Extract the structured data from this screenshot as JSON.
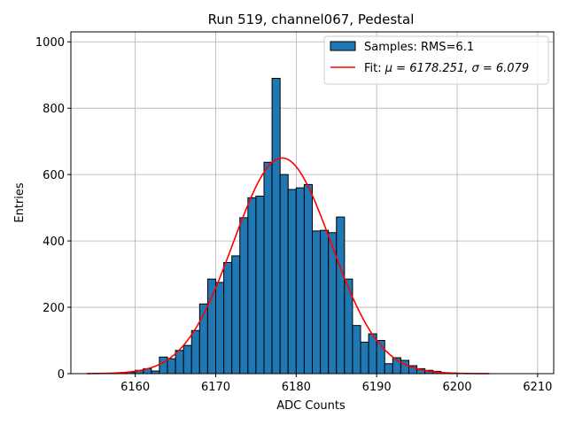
{
  "chart_data": {
    "type": "bar",
    "title": "Run 519, channel067, Pedestal",
    "xlabel": "ADC Counts",
    "ylabel": "Entries",
    "xlim": [
      6152,
      6212
    ],
    "ylim": [
      0,
      1030
    ],
    "xticks": [
      6160,
      6170,
      6180,
      6190,
      6200,
      6210
    ],
    "yticks": [
      0,
      200,
      400,
      600,
      800,
      1000
    ],
    "grid": true,
    "legend_position": "top-right",
    "bin_width": 1,
    "histogram": {
      "name": "Samples: RMS=6.1",
      "color": "#1f77b4",
      "edge_color": "#000000",
      "bin_lefts": [
        6157,
        6158,
        6159,
        6160,
        6161,
        6162,
        6163,
        6164,
        6165,
        6166,
        6167,
        6168,
        6169,
        6170,
        6171,
        6172,
        6173,
        6174,
        6175,
        6176,
        6177,
        6178,
        6179,
        6180,
        6181,
        6182,
        6183,
        6184,
        6185,
        6186,
        6187,
        6188,
        6189,
        6190,
        6191,
        6192,
        6193,
        6194,
        6195,
        6196,
        6197,
        6198,
        6199,
        6200
      ],
      "counts": [
        1,
        2,
        4,
        10,
        15,
        8,
        50,
        45,
        70,
        85,
        130,
        210,
        285,
        275,
        335,
        355,
        470,
        530,
        535,
        637,
        890,
        600,
        555,
        560,
        570,
        430,
        432,
        425,
        472,
        285,
        145,
        95,
        120,
        100,
        30,
        48,
        40,
        24,
        15,
        10,
        7,
        3,
        2,
        1
      ]
    },
    "fit": {
      "name_prefix": "Fit: ",
      "name_math": "μ = 6178.251, σ = 6.079",
      "color": "#ff0000",
      "mu": 6178.251,
      "sigma": 6.079,
      "amplitude": 650,
      "x_range": [
        6154,
        6204
      ]
    }
  }
}
